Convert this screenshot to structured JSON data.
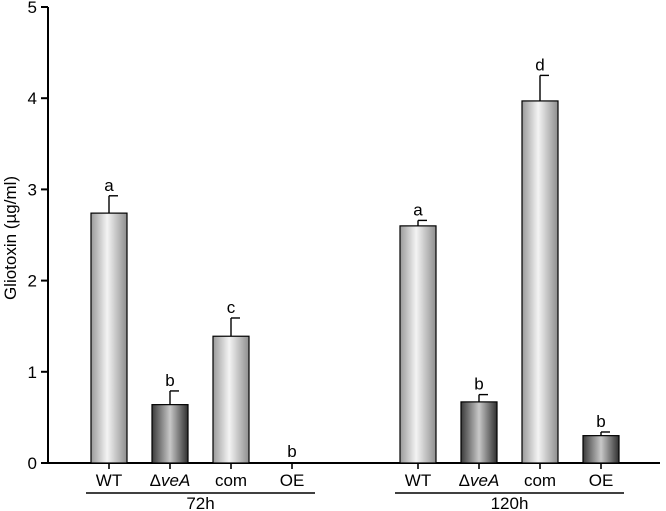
{
  "chart_data": {
    "type": "bar",
    "title": "",
    "ylabel": "Gliotoxin (µg/ml)",
    "ylim": [
      0,
      5
    ],
    "yticks": [
      "0",
      "1",
      "2",
      "3",
      "4",
      "5"
    ],
    "groups": [
      {
        "label": "72h",
        "bars": [
          {
            "category": "WT",
            "category_prefix": "",
            "category_italic": "",
            "value": 2.74,
            "error": 0.19,
            "letter": "a",
            "style": "light"
          },
          {
            "category": "ΔveA",
            "category_prefix": "Δ",
            "category_italic": "veA",
            "value": 0.64,
            "error": 0.15,
            "letter": "b",
            "style": "dark"
          },
          {
            "category": "com",
            "category_prefix": "",
            "category_italic": "",
            "value": 1.39,
            "error": 0.2,
            "letter": "c",
            "style": "light"
          },
          {
            "category": "OE",
            "category_prefix": "",
            "category_italic": "",
            "value": 0.0,
            "error": 0.0,
            "letter": "b",
            "style": "dark"
          }
        ]
      },
      {
        "label": "120h",
        "bars": [
          {
            "category": "WT",
            "category_prefix": "",
            "category_italic": "",
            "value": 2.6,
            "error": 0.06,
            "letter": "a",
            "style": "light"
          },
          {
            "category": "ΔveA",
            "category_prefix": "Δ",
            "category_italic": "veA",
            "value": 0.67,
            "error": 0.08,
            "letter": "b",
            "style": "dark"
          },
          {
            "category": "com",
            "category_prefix": "",
            "category_italic": "",
            "value": 3.97,
            "error": 0.28,
            "letter": "d",
            "style": "light"
          },
          {
            "category": "OE",
            "category_prefix": "",
            "category_italic": "",
            "value": 0.3,
            "error": 0.04,
            "letter": "b",
            "style": "dark"
          }
        ]
      }
    ]
  }
}
